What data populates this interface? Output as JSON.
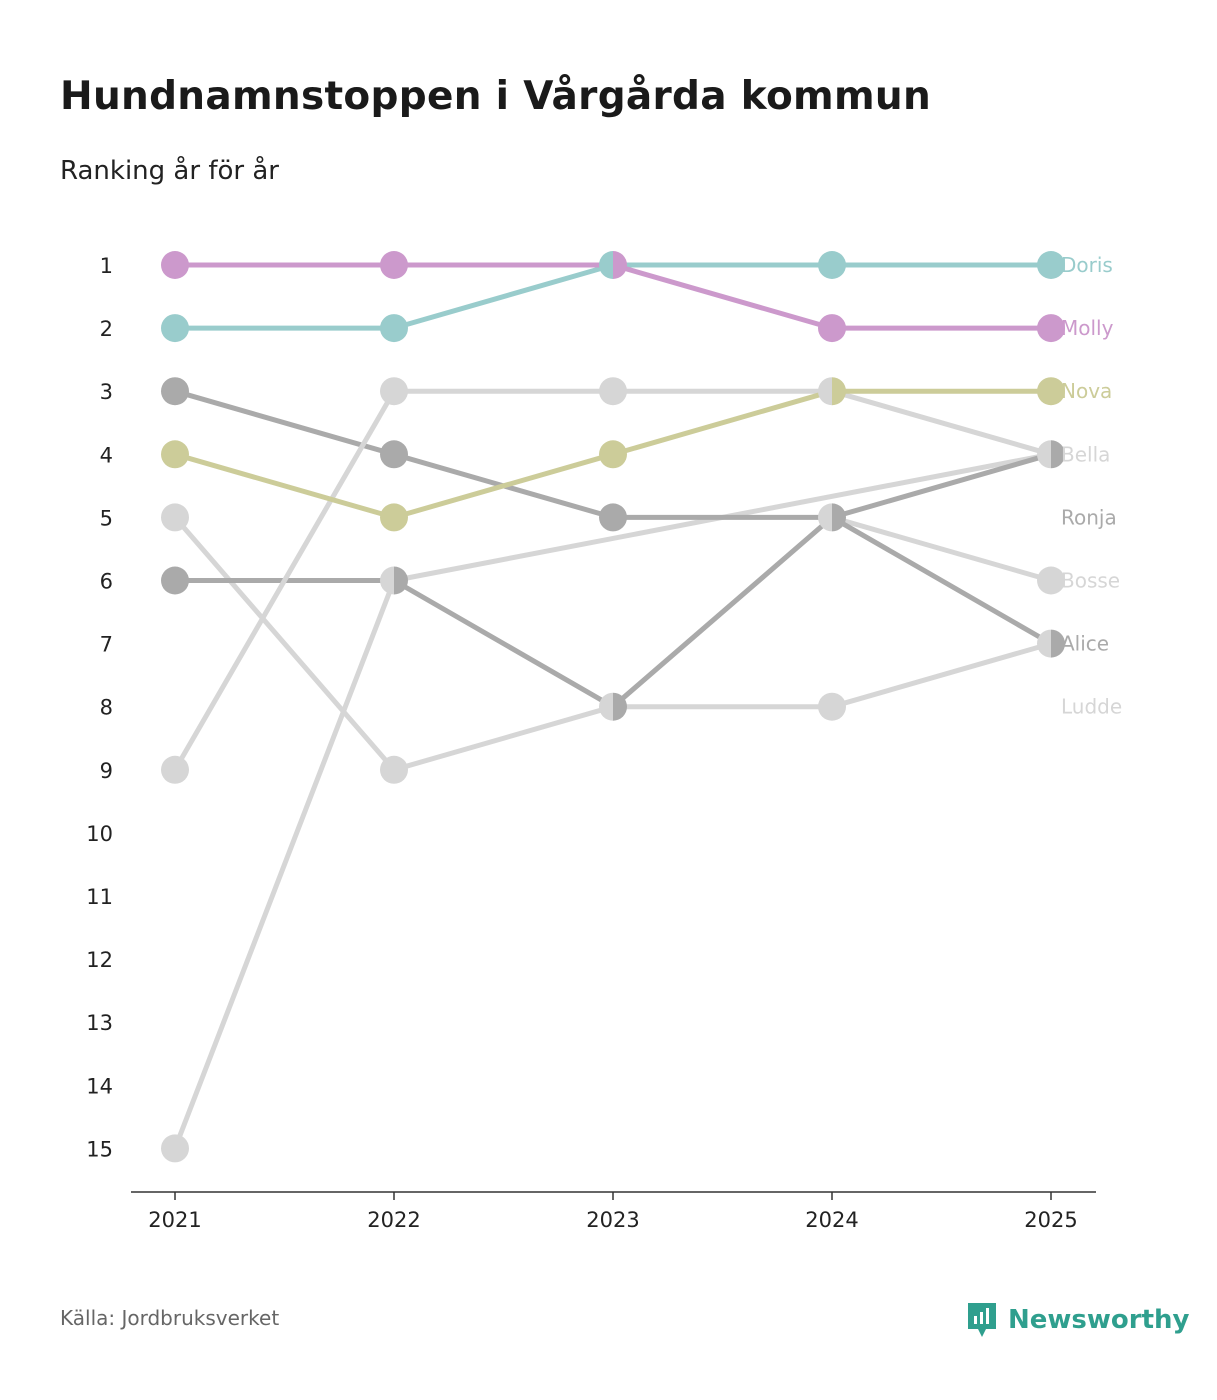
{
  "header": {
    "title": "Hundnamnstoppen i Vårgårda kommun",
    "subtitle": "Ranking år för år"
  },
  "footer": {
    "source": "Källa: Jordbruksverket",
    "brand": "Newsworthy",
    "brand_icon": "newsworthy-logo-icon",
    "brand_color": "#2f9f8e"
  },
  "chart_data": {
    "type": "bump",
    "title": "Hundnamnstoppen i Vårgårda kommun",
    "subtitle": "Ranking år för år",
    "xlabel": "",
    "ylabel": "",
    "x": [
      "2021",
      "2022",
      "2023",
      "2024",
      "2025"
    ],
    "y_ticks": [
      1,
      2,
      3,
      4,
      5,
      6,
      7,
      8,
      9,
      10,
      11,
      12,
      13,
      14,
      15
    ],
    "y_inverted": true,
    "ylim": [
      1,
      15
    ],
    "series": [
      {
        "name": "Ludde",
        "color": "#d6d6d6",
        "values": [
          null,
          null,
          8,
          8,
          7
        ]
      },
      {
        "name": "Bosse",
        "color": "#d6d6d6",
        "values": [
          5,
          9,
          8,
          5,
          6
        ]
      },
      {
        "name": "Bella",
        "color": "#d6d6d6",
        "values": [
          15,
          6,
          null,
          null,
          4
        ]
      },
      {
        "name": "Alice",
        "color": "#aaaaaa",
        "values": [
          6,
          6,
          8,
          5,
          7
        ]
      },
      {
        "name": "Ronja",
        "color": "#aaaaaa",
        "values": [
          3,
          4,
          5,
          5,
          4
        ]
      },
      {
        "name": "Bella",
        "color": "#d6d6d6",
        "values": [
          9,
          3,
          3,
          3,
          4
        ]
      },
      {
        "name": "Nova",
        "color": "#cccc99",
        "values": [
          4,
          5,
          4,
          3,
          3
        ]
      },
      {
        "name": "Doris",
        "color": "#99cccc",
        "values": [
          2,
          2,
          1,
          1,
          1
        ]
      },
      {
        "name": "Molly",
        "color": "#cc99cc",
        "values": [
          1,
          1,
          1,
          2,
          2
        ]
      }
    ],
    "end_labels": [
      {
        "name": "Doris",
        "rank": 1,
        "color": "#99cccc"
      },
      {
        "name": "Molly",
        "rank": 2,
        "color": "#cc99cc"
      },
      {
        "name": "Nova",
        "rank": 3,
        "color": "#cccc99"
      },
      {
        "name": "Bella",
        "rank": 4,
        "color": "#d6d6d6"
      },
      {
        "name": "Ronja",
        "rank": 5,
        "color": "#aaaaaa"
      },
      {
        "name": "Bosse",
        "rank": 6,
        "color": "#d6d6d6"
      },
      {
        "name": "Alice",
        "rank": 7,
        "color": "#aaaaaa"
      },
      {
        "name": "Ludde",
        "rank": 8,
        "color": "#d6d6d6"
      }
    ],
    "tie_color": "#6e6e78"
  }
}
